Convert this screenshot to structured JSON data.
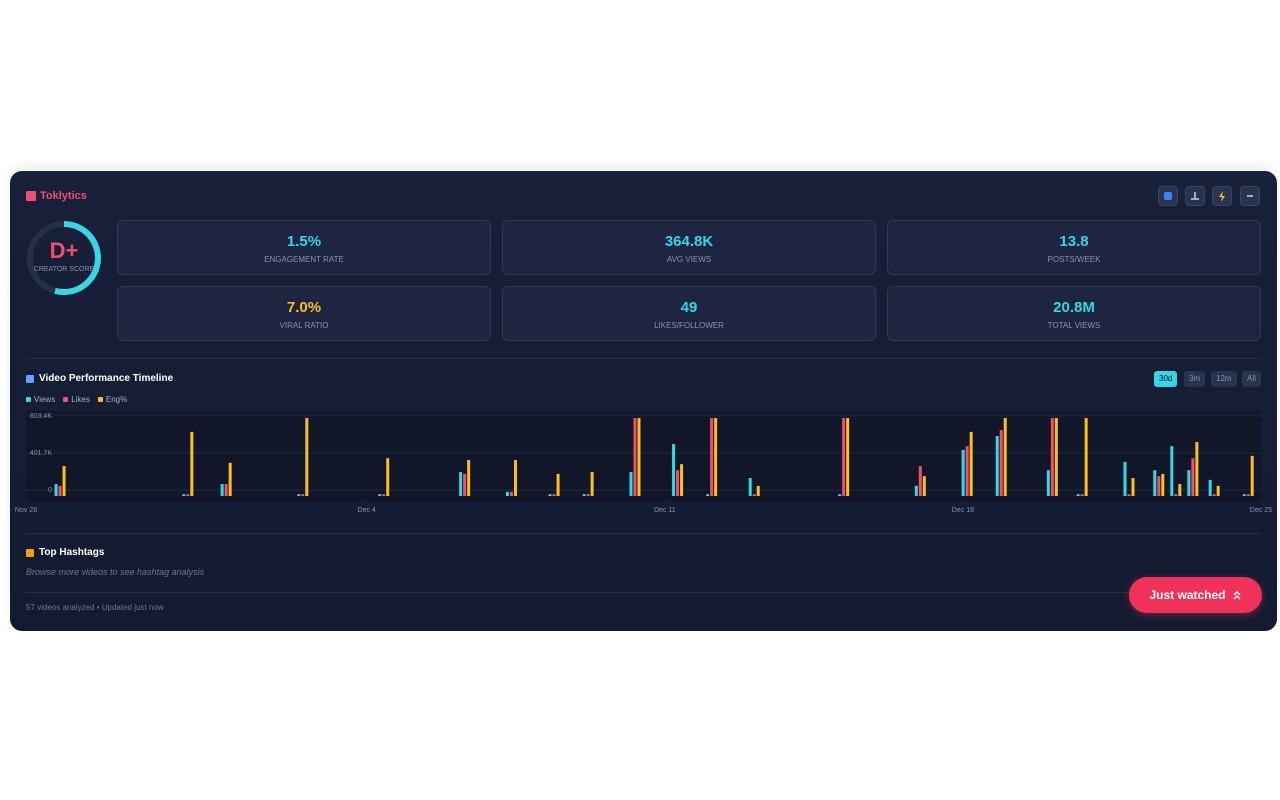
{
  "header": {
    "title": "Toklytics"
  },
  "score": {
    "grade": "D+",
    "label": "CREATOR SCORE"
  },
  "metrics": [
    {
      "value": "1.5%",
      "label": "ENGAGEMENT RATE",
      "color": "#36d6e7"
    },
    {
      "value": "364.8K",
      "label": "AVG VIEWS",
      "color": "#36d6e7"
    },
    {
      "value": "13.8",
      "label": "POSTS/WEEK",
      "color": "#36d6e7"
    },
    {
      "value": "7.0%",
      "label": "VIRAL RATIO",
      "color": "#fbbf24"
    },
    {
      "value": "49",
      "label": "LIKES/FOLLOWER",
      "color": "#36d6e7"
    },
    {
      "value": "20.8M",
      "label": "TOTAL VIEWS",
      "color": "#36d6e7"
    }
  ],
  "timeline": {
    "title": "Video Performance Timeline",
    "ranges": [
      "30d",
      "3m",
      "12m",
      "All"
    ],
    "active_range": 0
  },
  "chart_data": {
    "type": "bar",
    "x": [
      0.8,
      3.8,
      4.7,
      6.5,
      8.4,
      10.3,
      11.4,
      12.4,
      13.2,
      14.3,
      15.3,
      16.1,
      17.1,
      19.2,
      21.0,
      22.1,
      22.9,
      24.1,
      24.8,
      25.9,
      26.6,
      27.0,
      27.4,
      27.9,
      28.7
    ],
    "xlim": [
      0,
      29
    ],
    "xticks": [
      {
        "value": 0,
        "label": "Nov 26"
      },
      {
        "value": 8,
        "label": "Dec 4"
      },
      {
        "value": 15,
        "label": "Dec 11"
      },
      {
        "value": 22,
        "label": "Dec 18"
      },
      {
        "value": 29,
        "label": "Dec 25"
      }
    ],
    "ylim": [
      0,
      900000
    ],
    "yticks": [
      0,
      {
        "value": 401700,
        "label": "401.7K"
      },
      {
        "value": 803400,
        "label": "803.4K"
      }
    ],
    "grid": true,
    "series": [
      {
        "name": "Views",
        "color": "#36d6e7",
        "values": [
          130000,
          20000,
          130000,
          20000,
          20000,
          260000,
          45000,
          20000,
          20000,
          260000,
          565000,
          20000,
          195000,
          20000,
          110000,
          500000,
          650000,
          280000,
          20000,
          370000,
          280000,
          540000,
          280000,
          175000,
          20000
        ]
      },
      {
        "name": "Likes",
        "color": "#f0506e",
        "values": [
          110000,
          20000,
          130000,
          20000,
          20000,
          240000,
          45000,
          20000,
          20000,
          845000,
          280000,
          845000,
          20000,
          845000,
          325000,
          540000,
          715000,
          845000,
          20000,
          20000,
          215000,
          20000,
          410000,
          20000,
          20000
        ]
      },
      {
        "name": "Eng%",
        "color": "#fbbf24",
        "values": [
          325000,
          695000,
          360000,
          845000,
          410000,
          390000,
          390000,
          240000,
          260000,
          845000,
          345000,
          845000,
          110000,
          845000,
          215000,
          695000,
          845000,
          845000,
          845000,
          195000,
          240000,
          130000,
          585000,
          110000,
          435000
        ]
      }
    ]
  },
  "hashtags": {
    "title": "Top Hashtags",
    "hint": "Browse more videos to see hashtag analysis"
  },
  "footer": {
    "status": "57 videos analyzed • Updated just now",
    "button": "Just watched"
  }
}
